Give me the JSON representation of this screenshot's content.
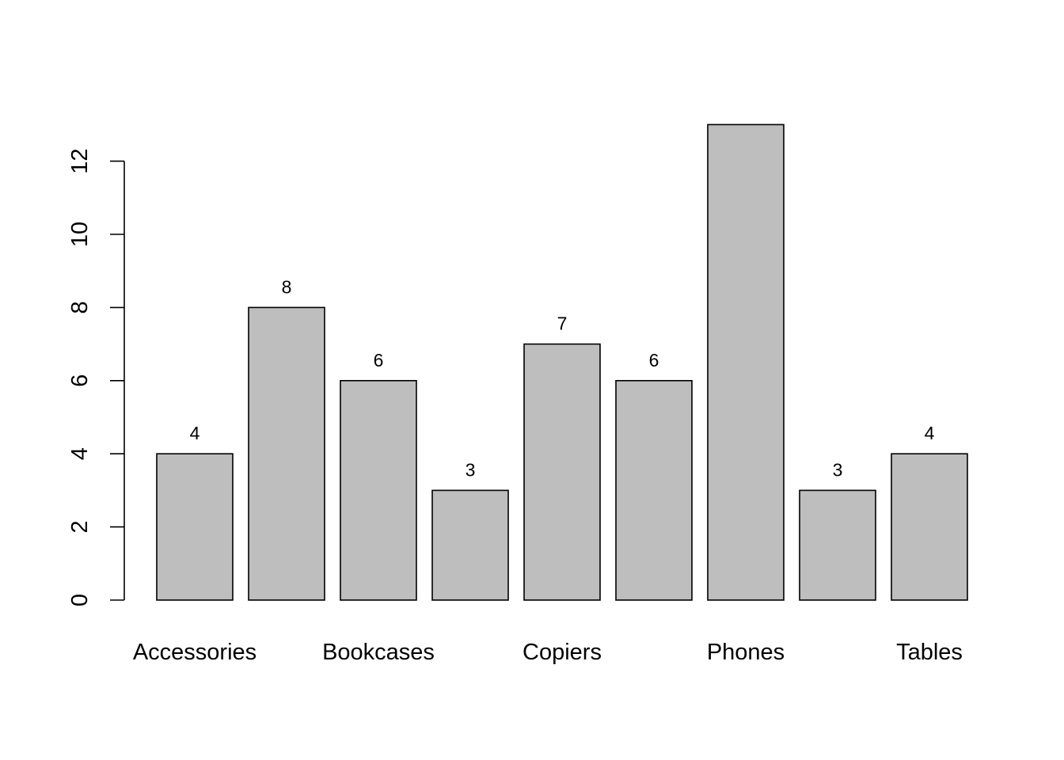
{
  "chart_data": {
    "type": "bar",
    "categories": [
      "Accessories",
      "",
      "Bookcases",
      "",
      "Copiers",
      "",
      "Phones",
      "",
      "Tables"
    ],
    "values": [
      4,
      8,
      6,
      3,
      7,
      6,
      13,
      3,
      4
    ],
    "data_labels": [
      "4",
      "8",
      "6",
      "3",
      "7",
      "6",
      "",
      "3",
      "4"
    ],
    "yticks": [
      0,
      2,
      4,
      6,
      8,
      10,
      12
    ],
    "ylim": [
      0,
      13
    ],
    "title": "",
    "xlabel": "",
    "ylabel": "",
    "grid": false,
    "colors": {
      "bar_fill": "#bebebe",
      "bar_stroke": "#000000"
    }
  }
}
